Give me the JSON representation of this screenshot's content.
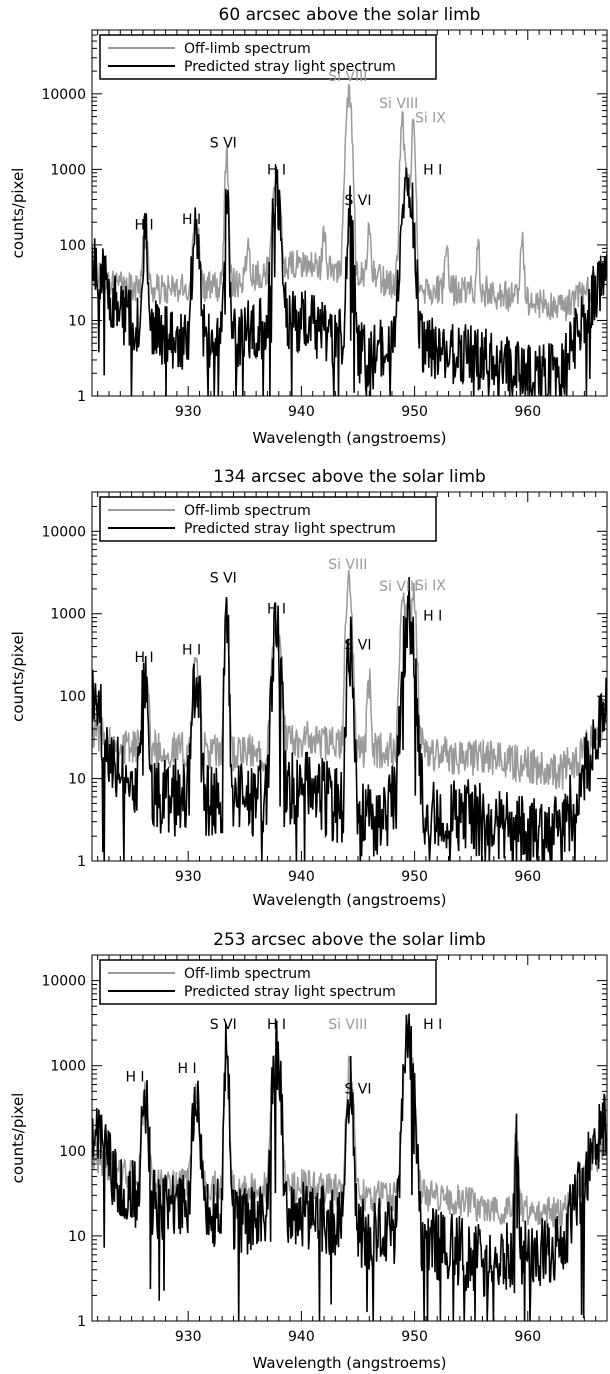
{
  "chart_data": [
    {
      "type": "line",
      "title": "60 arcsec above the solar limb",
      "xlabel": "Wavelength (angstroems)",
      "ylabel": "counts/pixel",
      "xlim": [
        921.5,
        967
      ],
      "ylim": [
        1,
        70000
      ],
      "yscale": "log",
      "xticks": [
        930,
        940,
        950,
        960
      ],
      "yticks": [
        {
          "value": 1,
          "label": "1"
        },
        {
          "value": 10,
          "label": "10"
        },
        {
          "value": 100,
          "label": "100"
        },
        {
          "value": 1000,
          "label": "1000"
        },
        {
          "value": 10000,
          "label": "10000"
        }
      ],
      "legend_position": "top-left",
      "series": [
        {
          "name": "Off-limb spectrum",
          "color": "#9a9a9a",
          "role": "offlimb",
          "noise": 0.22,
          "strayfactor": 1,
          "baseline": [
            [
              921.5,
              45
            ],
            [
              924,
              28
            ],
            [
              928,
              25
            ],
            [
              933,
              28
            ],
            [
              936,
              40
            ],
            [
              940,
              55
            ],
            [
              943,
              50
            ],
            [
              946,
              40
            ],
            [
              948,
              30
            ],
            [
              952,
              25
            ],
            [
              956,
              25
            ],
            [
              960,
              18
            ],
            [
              963,
              14
            ],
            [
              966,
              30
            ],
            [
              967,
              60
            ]
          ],
          "lines": [
            [
              926.2,
              110,
              0.18
            ],
            [
              930.7,
              170,
              0.22
            ],
            [
              933.4,
              1500,
              0.12
            ],
            [
              937.8,
              470,
              0.25
            ],
            [
              944.2,
              9600,
              0.18
            ],
            [
              946.0,
              110,
              0.14
            ],
            [
              948.9,
              4000,
              0.12
            ],
            [
              949.4,
              700,
              0.35
            ],
            [
              949.9,
              3000,
              0.12
            ],
            [
              952.8,
              65,
              0.12
            ],
            [
              955.6,
              55,
              0.12
            ],
            [
              959.5,
              95,
              0.14
            ],
            [
              942.0,
              70,
              0.12
            ],
            [
              935.3,
              60,
              0.15
            ]
          ]
        },
        {
          "name": "Predicted stray light spectrum",
          "color": "#000000",
          "role": "stray",
          "noise": 0.45,
          "baseline": [
            [
              921.5,
              70
            ],
            [
              924,
              12
            ],
            [
              928,
              6
            ],
            [
              933,
              5
            ],
            [
              936,
              8
            ],
            [
              940,
              10
            ],
            [
              943,
              6
            ],
            [
              946,
              3
            ],
            [
              948,
              5
            ],
            [
              952,
              4
            ],
            [
              956,
              3
            ],
            [
              960,
              2
            ],
            [
              963,
              2
            ],
            [
              966,
              25
            ],
            [
              967,
              60
            ]
          ],
          "lines": [
            [
              926.2,
              110,
              0.18
            ],
            [
              930.7,
              170,
              0.22
            ],
            [
              933.4,
              480,
              0.13
            ],
            [
              937.8,
              470,
              0.25
            ],
            [
              944.3,
              270,
              0.18
            ],
            [
              949.4,
              700,
              0.32
            ]
          ]
        }
      ],
      "annotations": [
        {
          "text": "H I",
          "x": 926.1,
          "y": 160,
          "color": "black"
        },
        {
          "text": "H I",
          "x": 930.3,
          "y": 190,
          "color": "black"
        },
        {
          "text": "S VI",
          "x": 933.1,
          "y": 1950,
          "color": "black"
        },
        {
          "text": "H I",
          "x": 937.8,
          "y": 860,
          "color": "black"
        },
        {
          "text": "Si VIII",
          "x": 944.1,
          "y": 14800,
          "color": "gray"
        },
        {
          "text": "Si VIII",
          "x": 948.6,
          "y": 6500,
          "color": "gray"
        },
        {
          "text": "Si IX",
          "x": 951.4,
          "y": 4150,
          "color": "gray"
        },
        {
          "text": "S VI",
          "x": 945.0,
          "y": 340,
          "color": "black"
        },
        {
          "text": "H I",
          "x": 951.6,
          "y": 850,
          "color": "black"
        }
      ]
    },
    {
      "type": "line",
      "title": "134 arcsec above the solar limb",
      "xlabel": "Wavelength (angstroems)",
      "ylabel": "counts/pixel",
      "xlim": [
        921.5,
        967
      ],
      "ylim": [
        1,
        30000
      ],
      "yscale": "log",
      "xticks": [
        930,
        940,
        950,
        960
      ],
      "yticks": [
        {
          "value": 1,
          "label": "1"
        },
        {
          "value": 10,
          "label": "10"
        },
        {
          "value": 100,
          "label": "100"
        },
        {
          "value": 1000,
          "label": "1000"
        },
        {
          "value": 10000,
          "label": "10000"
        }
      ],
      "legend_position": "top-left",
      "series": [
        {
          "name": "Off-limb spectrum",
          "color": "#9a9a9a",
          "role": "offlimb",
          "noise": 0.25,
          "strayfactor": 1,
          "baseline": [
            [
              921.5,
              40
            ],
            [
              924,
              25
            ],
            [
              928,
              22
            ],
            [
              933,
              20
            ],
            [
              936,
              20
            ],
            [
              940,
              30
            ],
            [
              943,
              25
            ],
            [
              946,
              22
            ],
            [
              948,
              22
            ],
            [
              952,
              20
            ],
            [
              956,
              18
            ],
            [
              960,
              15
            ],
            [
              963,
              12
            ],
            [
              966,
              30
            ],
            [
              967,
              60
            ]
          ],
          "lines": [
            [
              926.2,
              170,
              0.2
            ],
            [
              930.7,
              190,
              0.22
            ],
            [
              933.4,
              900,
              0.13
            ],
            [
              937.8,
              650,
              0.25
            ],
            [
              944.2,
              2300,
              0.18
            ],
            [
              946.0,
              110,
              0.14
            ],
            [
              948.9,
              1100,
              0.14
            ],
            [
              949.5,
              900,
              0.35
            ],
            [
              950.0,
              1100,
              0.13
            ]
          ]
        },
        {
          "name": "Predicted stray light spectrum",
          "color": "#000000",
          "role": "stray",
          "noise": 0.5,
          "baseline": [
            [
              921.5,
              90
            ],
            [
              924,
              12
            ],
            [
              928,
              6
            ],
            [
              933,
              5
            ],
            [
              936,
              6
            ],
            [
              940,
              8
            ],
            [
              943,
              5
            ],
            [
              946,
              3
            ],
            [
              948,
              5
            ],
            [
              952,
              4
            ],
            [
              956,
              3
            ],
            [
              960,
              2
            ],
            [
              963,
              2
            ],
            [
              966,
              30
            ],
            [
              967,
              90
            ]
          ],
          "lines": [
            [
              926.2,
              160,
              0.2
            ],
            [
              930.7,
              180,
              0.22
            ],
            [
              933.4,
              700,
              0.13
            ],
            [
              937.8,
              600,
              0.25
            ],
            [
              944.3,
              350,
              0.18
            ],
            [
              949.5,
              950,
              0.32
            ]
          ]
        }
      ],
      "annotations": [
        {
          "text": "H I",
          "x": 926.1,
          "y": 260,
          "color": "black"
        },
        {
          "text": "H I",
          "x": 930.3,
          "y": 320,
          "color": "black"
        },
        {
          "text": "S VI",
          "x": 933.1,
          "y": 2400,
          "color": "black"
        },
        {
          "text": "H I",
          "x": 937.8,
          "y": 1000,
          "color": "black"
        },
        {
          "text": "Si VIII",
          "x": 944.1,
          "y": 3500,
          "color": "gray"
        },
        {
          "text": "Si VIII",
          "x": 948.6,
          "y": 1900,
          "color": "gray"
        },
        {
          "text": "Si IX",
          "x": 951.4,
          "y": 1950,
          "color": "gray"
        },
        {
          "text": "S VI",
          "x": 945.0,
          "y": 370,
          "color": "black"
        },
        {
          "text": "H I",
          "x": 951.6,
          "y": 830,
          "color": "black"
        }
      ]
    },
    {
      "type": "line",
      "title": "253 arcsec above the solar limb",
      "xlabel": "Wavelength (angstroems)",
      "ylabel": "counts/pixel",
      "xlim": [
        921.5,
        967
      ],
      "ylim": [
        1,
        20000
      ],
      "yscale": "log",
      "xticks": [
        930,
        940,
        950,
        960
      ],
      "yticks": [
        {
          "value": 1,
          "label": "1"
        },
        {
          "value": 10,
          "label": "10"
        },
        {
          "value": 100,
          "label": "100"
        },
        {
          "value": 1000,
          "label": "1000"
        },
        {
          "value": 10000,
          "label": "10000"
        }
      ],
      "legend_position": "top-left",
      "series": [
        {
          "name": "Off-limb spectrum",
          "color": "#9a9a9a",
          "role": "offlimb",
          "noise": 0.2,
          "strayfactor": 1,
          "baseline": [
            [
              921.5,
              90
            ],
            [
              924,
              55
            ],
            [
              928,
              40
            ],
            [
              933,
              38
            ],
            [
              936,
              35
            ],
            [
              940,
              40
            ],
            [
              943,
              35
            ],
            [
              946,
              30
            ],
            [
              948,
              30
            ],
            [
              952,
              30
            ],
            [
              956,
              22
            ],
            [
              960,
              20
            ],
            [
              963,
              18
            ],
            [
              966,
              80
            ],
            [
              967,
              140
            ]
          ],
          "lines": [
            [
              926.2,
              380,
              0.2
            ],
            [
              930.7,
              420,
              0.22
            ],
            [
              933.4,
              1500,
              0.13
            ],
            [
              937.8,
              1400,
              0.25
            ],
            [
              944.3,
              1100,
              0.2
            ],
            [
              949.5,
              1900,
              0.3
            ],
            [
              959.0,
              140,
              0.12
            ]
          ]
        },
        {
          "name": "Predicted stray light spectrum",
          "color": "#000000",
          "role": "stray",
          "noise": 0.45,
          "baseline": [
            [
              921.5,
              200
            ],
            [
              924,
              35
            ],
            [
              928,
              20
            ],
            [
              933,
              18
            ],
            [
              936,
              15
            ],
            [
              940,
              18
            ],
            [
              943,
              15
            ],
            [
              946,
              10
            ],
            [
              948,
              12
            ],
            [
              952,
              8
            ],
            [
              956,
              5
            ],
            [
              960,
              6
            ],
            [
              963,
              8
            ],
            [
              966,
              120
            ],
            [
              967,
              200
            ]
          ],
          "lines": [
            [
              926.2,
              370,
              0.2
            ],
            [
              930.7,
              420,
              0.22
            ],
            [
              933.4,
              1500,
              0.13
            ],
            [
              937.8,
              1350,
              0.25
            ],
            [
              944.3,
              650,
              0.18
            ],
            [
              949.5,
              2000,
              0.3
            ],
            [
              959.0,
              120,
              0.1
            ]
          ]
        }
      ],
      "annotations": [
        {
          "text": "H I",
          "x": 925.3,
          "y": 650,
          "color": "black"
        },
        {
          "text": "H I",
          "x": 929.9,
          "y": 820,
          "color": "black"
        },
        {
          "text": "S VI",
          "x": 933.1,
          "y": 2700,
          "color": "black"
        },
        {
          "text": "H I",
          "x": 937.8,
          "y": 2700,
          "color": "black"
        },
        {
          "text": "Si VIII",
          "x": 944.1,
          "y": 2700,
          "color": "gray"
        },
        {
          "text": "S VI",
          "x": 945.0,
          "y": 470,
          "color": "black"
        },
        {
          "text": "H I",
          "x": 951.6,
          "y": 2700,
          "color": "black"
        }
      ]
    }
  ]
}
